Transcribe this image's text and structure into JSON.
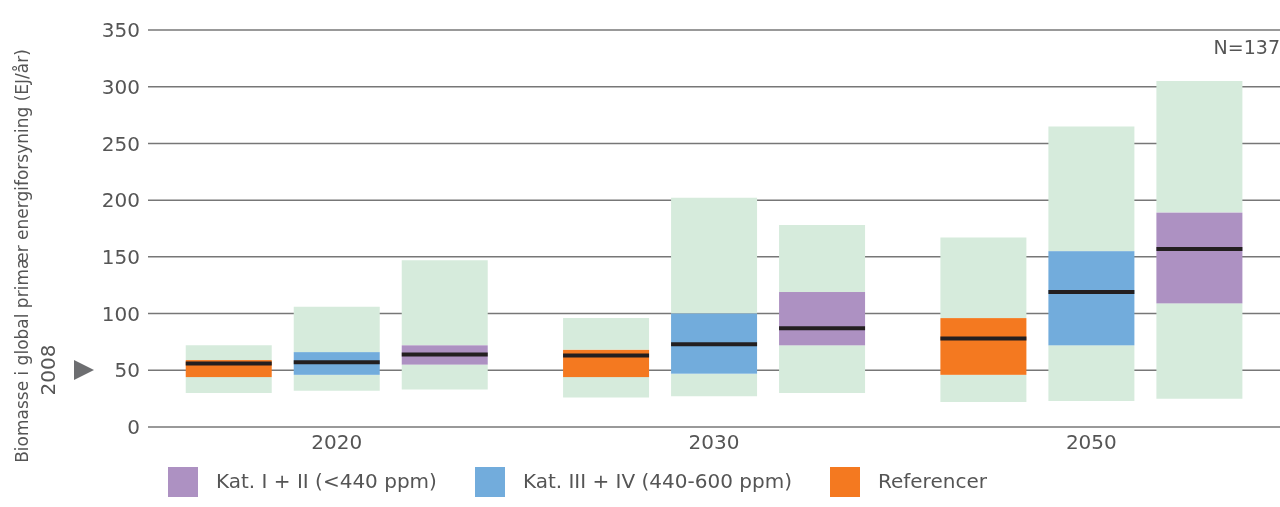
{
  "chart_data": {
    "type": "box",
    "ylabel": "Biomasse i global primær energiforsyning (EJ/år)",
    "categories": [
      "2020",
      "2030",
      "2050"
    ],
    "series": [
      {
        "name": "Referencer",
        "color": "#f47920",
        "boxes": [
          {
            "low": 30,
            "q1": 44,
            "median": 56,
            "q3": 59,
            "high": 72
          },
          {
            "low": 26,
            "q1": 44,
            "median": 63,
            "q3": 68,
            "high": 96
          },
          {
            "low": 22,
            "q1": 46,
            "median": 78,
            "q3": 96,
            "high": 167
          }
        ]
      },
      {
        "name": "Kat. III + IV (440-600 ppm)",
        "color": "#72acdc",
        "boxes": [
          {
            "low": 32,
            "q1": 46,
            "median": 57,
            "q3": 66,
            "high": 106
          },
          {
            "low": 27,
            "q1": 47,
            "median": 73,
            "q3": 100,
            "high": 202
          },
          {
            "low": 23,
            "q1": 72,
            "median": 119,
            "q3": 155,
            "high": 265
          }
        ]
      },
      {
        "name": "Kat. I + II (<440 ppm)",
        "color": "#ad91c2",
        "boxes": [
          {
            "low": 33,
            "q1": 55,
            "median": 64,
            "q3": 72,
            "high": 147
          },
          {
            "low": 30,
            "q1": 72,
            "median": 87,
            "q3": 119,
            "high": 178
          },
          {
            "low": 25,
            "q1": 109,
            "median": 157,
            "q3": 189,
            "high": 305
          }
        ]
      }
    ],
    "ylim": [
      0,
      350
    ],
    "yticks": [
      0,
      50,
      100,
      150,
      200,
      250,
      300,
      350
    ],
    "grid": "y",
    "legend": "bottom",
    "annotations": [
      "N=137",
      "2008"
    ]
  }
}
